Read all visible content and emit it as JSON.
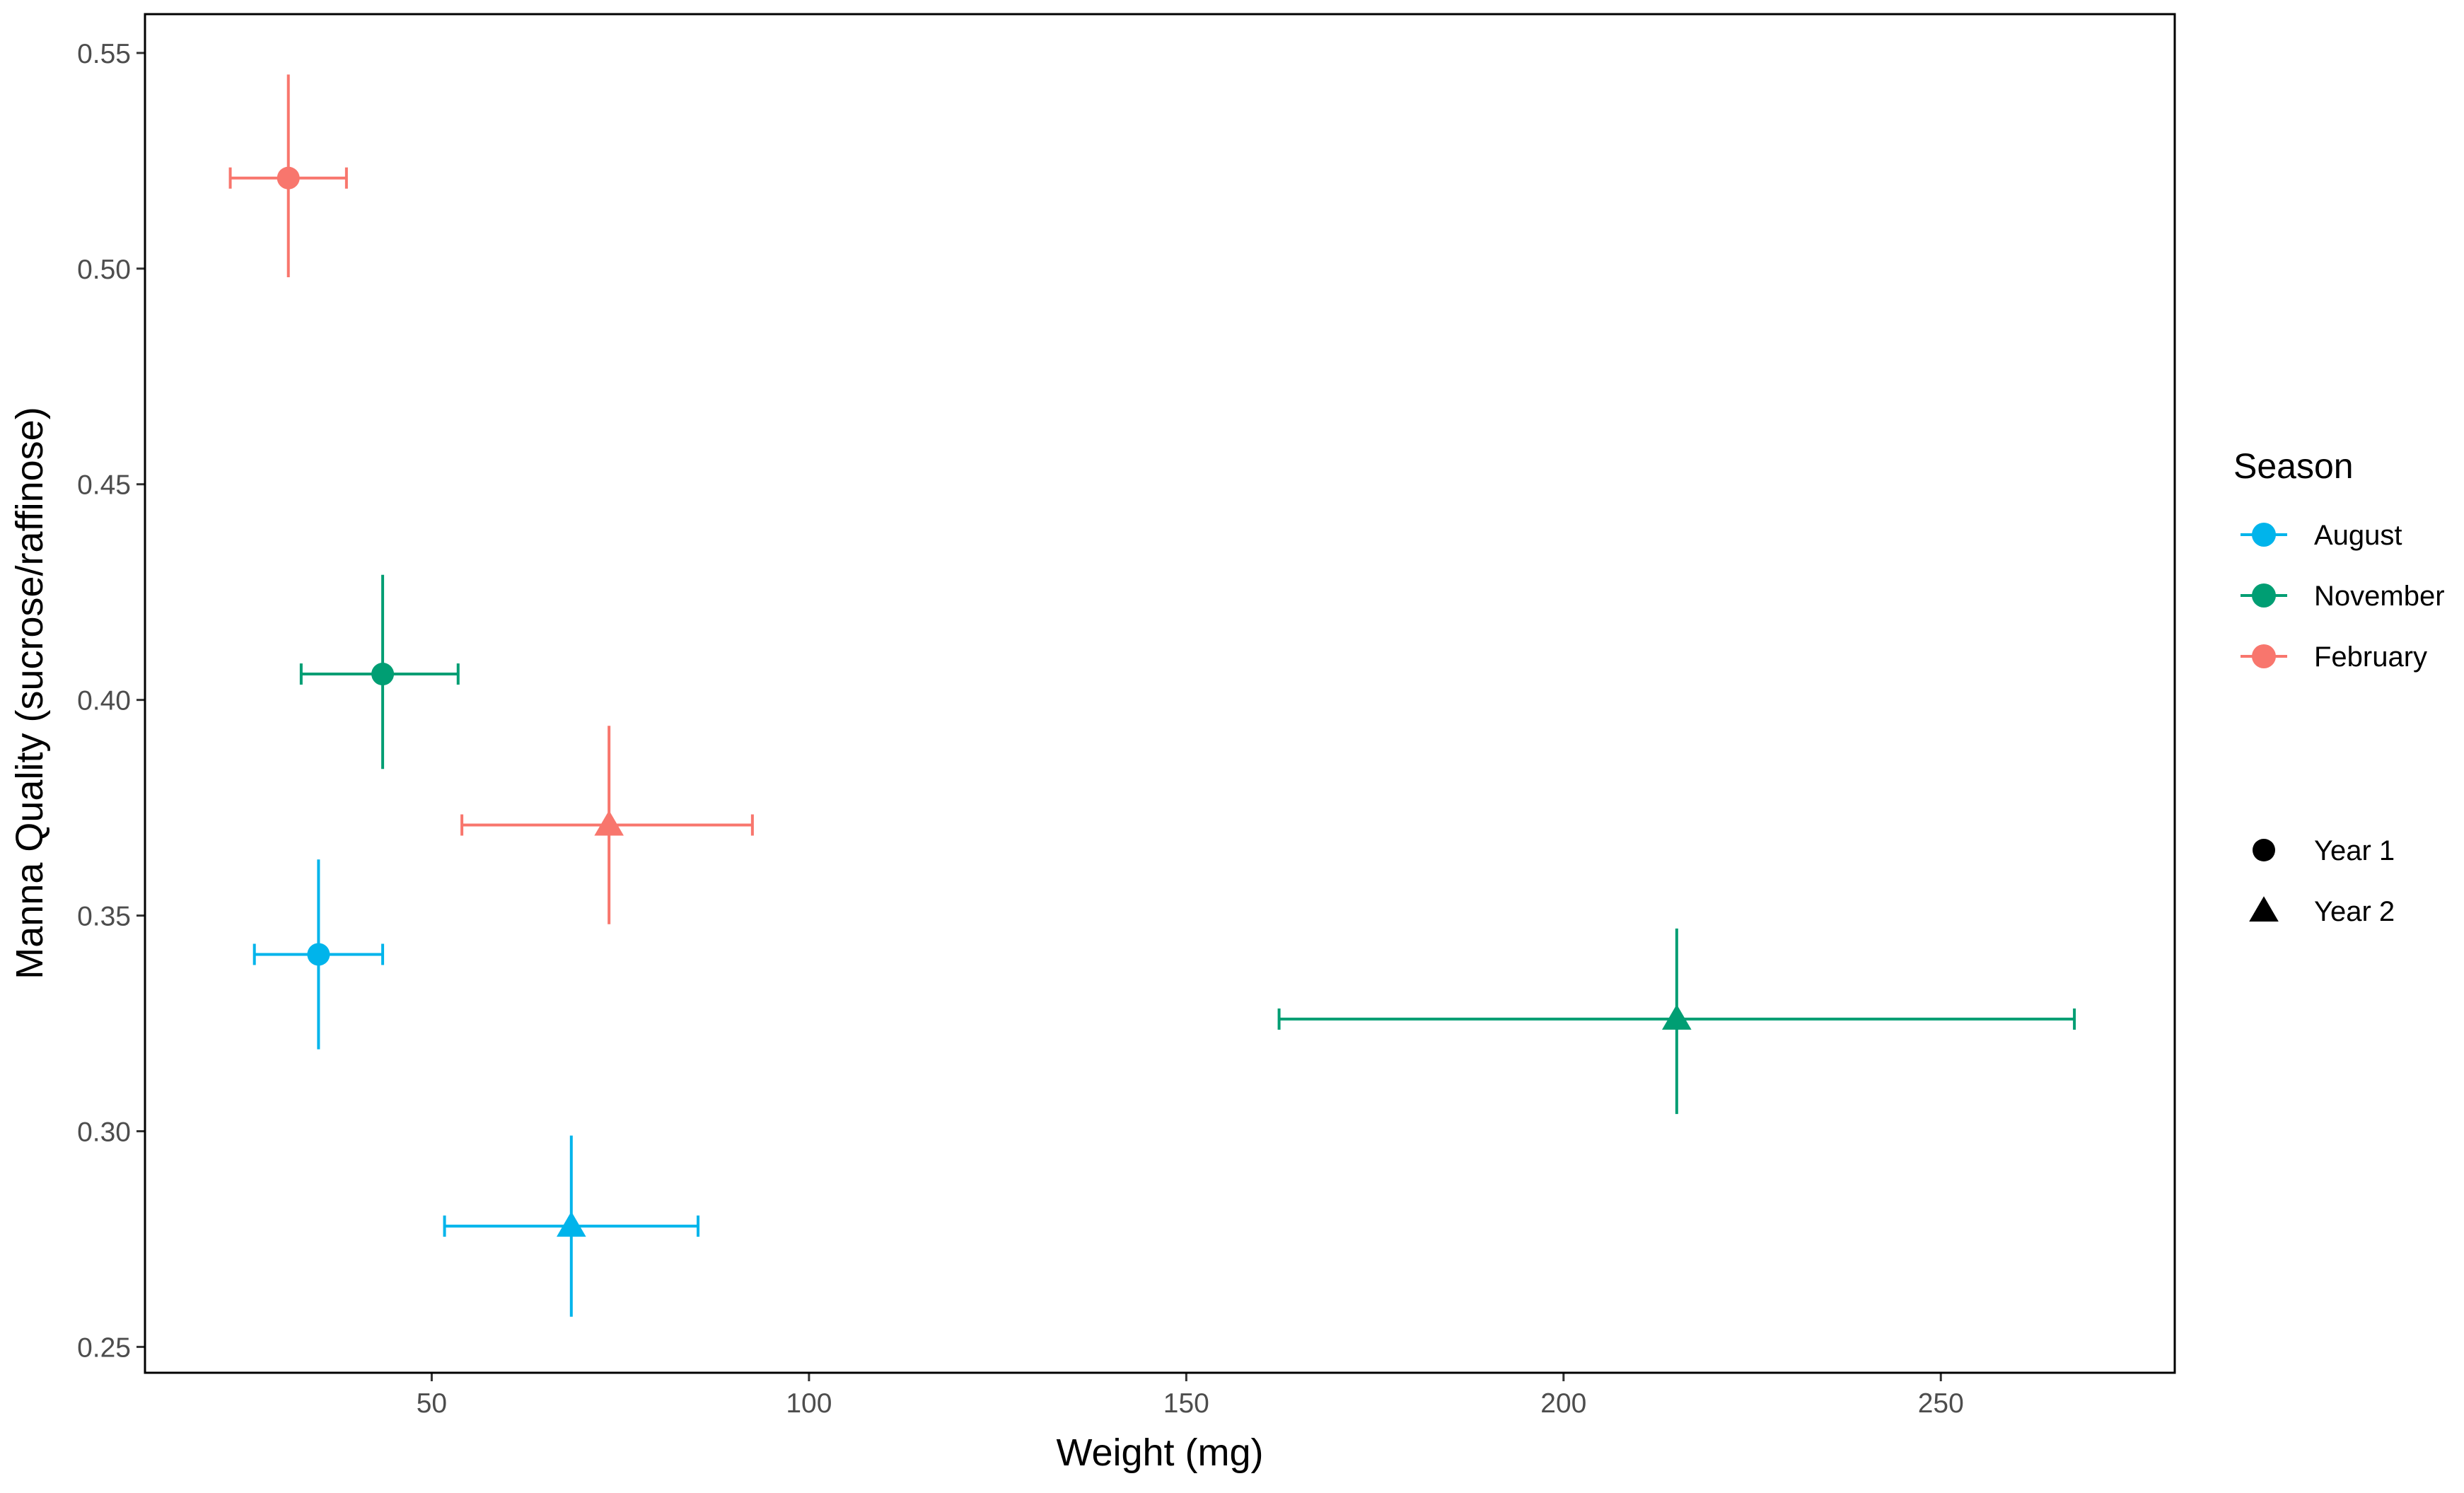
{
  "chart_data": {
    "type": "scatter",
    "xlabel": "Weight (mg)",
    "ylabel": "Manna Quality (sucrose/raffinose)",
    "xlim": [
      12,
      281
    ],
    "ylim": [
      0.244,
      0.559
    ],
    "x_ticks": [
      50,
      100,
      150,
      200,
      250
    ],
    "x_tick_labels": [
      "50",
      "100",
      "150",
      "200",
      "250"
    ],
    "y_ticks": [
      0.25,
      0.3,
      0.35,
      0.4,
      0.45,
      0.5,
      0.55
    ],
    "y_tick_labels": [
      "0.25",
      "0.30",
      "0.35",
      "0.40",
      "0.45",
      "0.50",
      "0.55"
    ],
    "grid": false,
    "legend_placement": "right",
    "legend": {
      "color_title": "Season",
      "color_entries": [
        {
          "label": "August",
          "color": "#00B4EB"
        },
        {
          "label": "November",
          "color": "#009E73"
        },
        {
          "label": "February",
          "color": "#F8766D"
        }
      ],
      "shape_entries": [
        {
          "label": "Year 1",
          "shape": "circle"
        },
        {
          "label": "Year 2",
          "shape": "triangle"
        }
      ]
    },
    "points": [
      {
        "season": "August",
        "year": "Year 1",
        "x": 35,
        "y": 0.341,
        "xerr": [
          26.5,
          43.5
        ],
        "yerr": [
          0.319,
          0.363
        ]
      },
      {
        "season": "August",
        "year": "Year 2",
        "x": 68.5,
        "y": 0.278,
        "xerr": [
          51.7,
          85.3
        ],
        "yerr": [
          0.257,
          0.299
        ]
      },
      {
        "season": "November",
        "year": "Year 1",
        "x": 43.5,
        "y": 0.406,
        "xerr": [
          32.7,
          53.5
        ],
        "yerr": [
          0.384,
          0.429
        ]
      },
      {
        "season": "November",
        "year": "Year 2",
        "x": 215,
        "y": 0.326,
        "xerr": [
          162.3,
          267.7
        ],
        "yerr": [
          0.304,
          0.347
        ]
      },
      {
        "season": "February",
        "year": "Year 1",
        "x": 31,
        "y": 0.521,
        "xerr": [
          23.3,
          38.7
        ],
        "yerr": [
          0.498,
          0.545
        ]
      },
      {
        "season": "February",
        "year": "Year 2",
        "x": 73.5,
        "y": 0.371,
        "xerr": [
          54,
          92.5
        ],
        "yerr": [
          0.348,
          0.394
        ]
      }
    ]
  }
}
